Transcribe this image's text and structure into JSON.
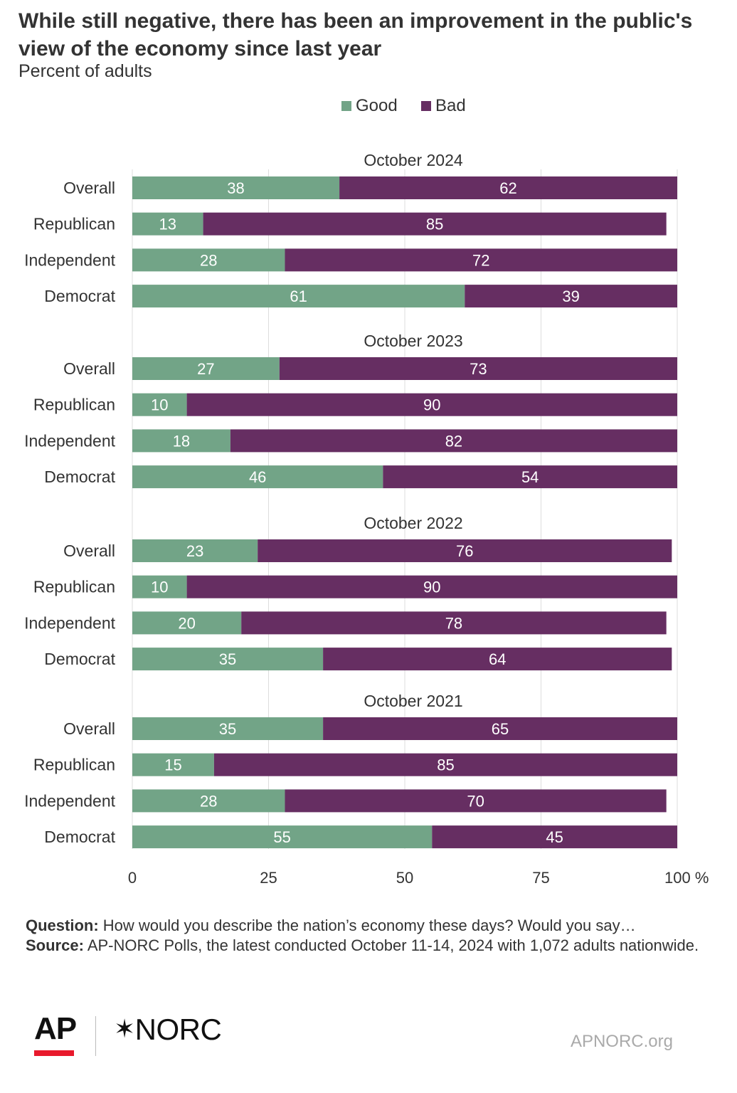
{
  "header": {
    "title": "While still negative, there has been an improvement in the public's view of the economy since last year",
    "subtitle": "Percent of adults"
  },
  "legend": {
    "good_label": "Good",
    "bad_label": "Bad"
  },
  "colors": {
    "good": "#72a487",
    "bad": "#662e62",
    "grid": "#dddddd",
    "text": "#333333"
  },
  "footer": {
    "question_label": "Question:",
    "question_text": " How would you describe the nation’s economy these days? Would you say…",
    "source_label": "Source:",
    "source_text": " AP-NORC Polls, the latest conducted October 11-14, 2024 with 1,072 adults nationwide.",
    "logo_ap": "AP",
    "logo_norc": "NORC",
    "url": "APNORC.org"
  },
  "chart_data": {
    "type": "bar",
    "orientation": "horizontal",
    "stacked": true,
    "x_ticks": [
      "0",
      "25",
      "50",
      "75",
      "100"
    ],
    "x_unit": "%",
    "xlim": [
      0,
      100
    ],
    "grid": true,
    "legend_position": "top-center",
    "series_names": [
      "Good",
      "Bad"
    ],
    "groups": [
      {
        "label": "October 2024",
        "rows": [
          {
            "category": "Overall",
            "good": 38,
            "bad": 62
          },
          {
            "category": "Republican",
            "good": 13,
            "bad": 85
          },
          {
            "category": "Independent",
            "good": 28,
            "bad": 72
          },
          {
            "category": "Democrat",
            "good": 61,
            "bad": 39
          }
        ]
      },
      {
        "label": "October 2023",
        "rows": [
          {
            "category": "Overall",
            "good": 27,
            "bad": 73
          },
          {
            "category": "Republican",
            "good": 10,
            "bad": 90
          },
          {
            "category": "Independent",
            "good": 18,
            "bad": 82
          },
          {
            "category": "Democrat",
            "good": 46,
            "bad": 54
          }
        ]
      },
      {
        "label": "October 2022",
        "rows": [
          {
            "category": "Overall",
            "good": 23,
            "bad": 76
          },
          {
            "category": "Republican",
            "good": 10,
            "bad": 90
          },
          {
            "category": "Independent",
            "good": 20,
            "bad": 78
          },
          {
            "category": "Democrat",
            "good": 35,
            "bad": 64
          }
        ]
      },
      {
        "label": "October 2021",
        "rows": [
          {
            "category": "Overall",
            "good": 35,
            "bad": 65
          },
          {
            "category": "Republican",
            "good": 15,
            "bad": 85
          },
          {
            "category": "Independent",
            "good": 28,
            "bad": 70
          },
          {
            "category": "Democrat",
            "good": 55,
            "bad": 45
          }
        ]
      }
    ]
  }
}
